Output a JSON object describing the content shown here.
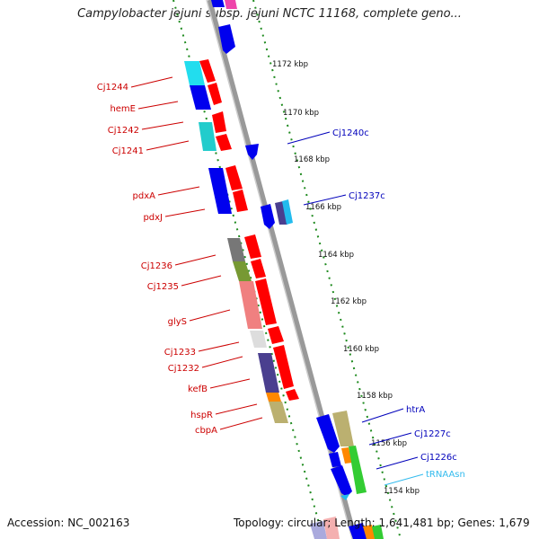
{
  "title": "Campylobacter jejuni subsp. jejuni NCTC 11168, complete geno...",
  "footer": {
    "accession": "Accession: NC_002163",
    "topology": "Topology: circular; Length: 1,641,481 bp; Genes: 1,679"
  },
  "scale_ticks": [
    "1172 kbp",
    "1170 kbp",
    "1168 kbp",
    "1166 kbp",
    "1164 kbp",
    "1162 kbp",
    "1160 kbp",
    "1158 kbp",
    "1156 kbp",
    "1154 kbp"
  ],
  "left_labels": [
    "Cj1244",
    "hemE",
    "Cj1242",
    "Cj1241",
    "pdxA",
    "pdxJ",
    "Cj1236",
    "Cj1235",
    "glyS",
    "Cj1233",
    "Cj1232",
    "kefB",
    "hspR",
    "cbpA"
  ],
  "right_labels": [
    "Cj1240c",
    "Cj1237c",
    "htrA",
    "Cj1227c",
    "Cj1226c",
    "tRNAAsn"
  ],
  "colors": {
    "forward_gene": "#ff0000",
    "reverse_gene": "#0000ee",
    "left_label": "#cc0000",
    "right_label": "#0000bb",
    "trna_label": "#33bbee",
    "dotted_track": "#1e8a1e",
    "backbone": "#999999"
  }
}
